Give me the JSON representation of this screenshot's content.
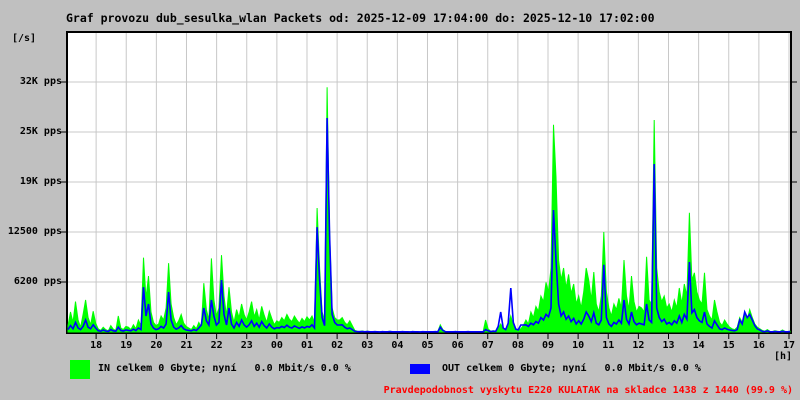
{
  "title": "Graf provozu dub_sesulka_wlan Packets od: 2025-12-09 17:04:00 do: 2025-12-10 17:02:00",
  "y_unit": "[/s]",
  "legend": {
    "in_label": "IN celkem 0 Gbyte; nyní   0.0 Mbit/s 0.0 %",
    "out_label": "OUT celkem 0 Gbyte; nyní   0.0 Mbit/s 0.0 %",
    "in_color": "#00ff00",
    "out_color": "#0000ff"
  },
  "footer": {
    "text": "Pravdepodobnost vyskytu E220 KULATAK na skladce 1438 z 1440 (99.9 %)",
    "color": "#ff0000"
  },
  "colors": {
    "background": "#c0c0c0",
    "plot_background": "#ffffff",
    "grid": "#c8c8c8",
    "border": "#000000"
  },
  "chart_data": {
    "type": "area",
    "title": "Graf provozu dub_sesulka_wlan Packets",
    "time_start": "2025-12-09 17:04:00",
    "time_end": "2025-12-10 17:02:00",
    "x_unit": "[h]",
    "x_labels": [
      "18",
      "19",
      "20",
      "21",
      "22",
      "23",
      "00",
      "01",
      "02",
      "03",
      "04",
      "05",
      "06",
      "07",
      "08",
      "09",
      "10",
      "11",
      "12",
      "13",
      "14",
      "15",
      "16",
      "17"
    ],
    "y_ticks": [
      {
        "label": "6200 pps",
        "value": 6250
      },
      {
        "label": "12500 pps",
        "value": 12500
      },
      {
        "label": "19K pps",
        "value": 18750
      },
      {
        "label": "25K pps",
        "value": 25000
      },
      {
        "label": "32K pps",
        "value": 31250
      }
    ],
    "ylim": [
      0,
      37375
    ],
    "grid": true,
    "legend_position": "bottom",
    "sample_interval_minutes": 5,
    "series": [
      {
        "name": "IN",
        "style": "area",
        "color": "#00ff00",
        "values": [
          800,
          2500,
          1200,
          3800,
          1500,
          600,
          2200,
          4000,
          1800,
          900,
          2600,
          1100,
          400,
          200,
          600,
          300,
          150,
          800,
          350,
          200,
          2000,
          500,
          300,
          700,
          600,
          300,
          900,
          400,
          1500,
          800,
          9300,
          4200,
          7000,
          2500,
          1200,
          800,
          1000,
          2000,
          1500,
          3000,
          8600,
          3500,
          1800,
          900,
          1400,
          2200,
          1100,
          700,
          500,
          300,
          800,
          400,
          1200,
          600,
          6100,
          2800,
          1500,
          9200,
          4000,
          2000,
          3000,
          9600,
          4500,
          2000,
          5600,
          2500,
          1200,
          2800,
          1800,
          3500,
          2200,
          1500,
          2500,
          3800,
          1900,
          2800,
          1500,
          3200,
          2100,
          1200,
          2600,
          1700,
          900,
          1400,
          1200,
          1800,
          1400,
          2200,
          1600,
          1300,
          2000,
          1500,
          1100,
          1700,
          1300,
          1900,
          1500,
          2000,
          1200,
          15500,
          8000,
          2500,
          1500,
          30600,
          12500,
          3000,
          1800,
          1500,
          1500,
          1800,
          1200,
          900,
          1400,
          800,
          200,
          100,
          80,
          120,
          60,
          100,
          60,
          40,
          80,
          50,
          30,
          70,
          40,
          60,
          90,
          50,
          40,
          60,
          50,
          70,
          40,
          60,
          30,
          80,
          45,
          55,
          35,
          65,
          50,
          40,
          60,
          40,
          70,
          50,
          900,
          300,
          80,
          50,
          60,
          40,
          70,
          50,
          50,
          60,
          40,
          70,
          50,
          60,
          40,
          50,
          60,
          40,
          1500,
          400,
          100,
          150,
          120,
          500,
          1000,
          400,
          250,
          800,
          2000,
          800,
          300,
          250,
          400,
          800,
          1500,
          1000,
          2500,
          1800,
          3200,
          2600,
          4500,
          3800,
          6200,
          5000,
          8000,
          25900,
          19400,
          9000,
          6500,
          8000,
          5500,
          7200,
          4800,
          6000,
          3500,
          4500,
          3000,
          5000,
          8000,
          6500,
          4000,
          7500,
          3500,
          2500,
          4500,
          12500,
          5000,
          3000,
          2000,
          3500,
          2800,
          4200,
          3000,
          9000,
          4500,
          2800,
          7000,
          3800,
          2500,
          3200,
          3000,
          2500,
          9400,
          4000,
          3500,
          26500,
          8000,
          5000,
          3800,
          4500,
          3000,
          3500,
          2500,
          4000,
          3000,
          5500,
          3500,
          6000,
          4500,
          14900,
          6500,
          7400,
          5000,
          4000,
          3500,
          7400,
          2800,
          2000,
          1500,
          4000,
          2500,
          1200,
          800,
          1500,
          1000,
          600,
          400,
          300,
          600,
          1800,
          1200,
          2200,
          1500,
          2800,
          1800,
          1000,
          600,
          400,
          200,
          100,
          300,
          80,
          60,
          150,
          90,
          50,
          250,
          70,
          40,
          100
        ]
      },
      {
        "name": "OUT",
        "style": "line",
        "color": "#0000ff",
        "values": [
          300,
          800,
          400,
          1200,
          500,
          300,
          700,
          1500,
          600,
          400,
          900,
          500,
          150,
          100,
          250,
          120,
          80,
          300,
          150,
          100,
          600,
          200,
          120,
          250,
          200,
          150,
          350,
          180,
          500,
          300,
          5600,
          2000,
          3500,
          1000,
          500,
          300,
          400,
          700,
          500,
          1000,
          5000,
          1500,
          600,
          350,
          500,
          800,
          400,
          250,
          200,
          150,
          300,
          180,
          500,
          876,
          3000,
          1400,
          876,
          4000,
          2000,
          876,
          1200,
          6500,
          2200,
          876,
          3000,
          1000,
          500,
          1200,
          700,
          1500,
          900,
          600,
          900,
          1400,
          700,
          1100,
          600,
          1300,
          800,
          500,
          1000,
          600,
          400,
          550,
          500,
          700,
          550,
          850,
          600,
          500,
          750,
          600,
          450,
          650,
          500,
          700,
          600,
          900,
          500,
          13100,
          6500,
          1800,
          800,
          26750,
          12000,
          2200,
          1200,
          876,
          876,
          900,
          600,
          400,
          500,
          300,
          80,
          50,
          40,
          60,
          30,
          50,
          30,
          20,
          40,
          25,
          15,
          35,
          20,
          30,
          45,
          25,
          20,
          30,
          25,
          35,
          20,
          30,
          15,
          40,
          22,
          28,
          18,
          32,
          25,
          20,
          30,
          20,
          35,
          25,
          600,
          200,
          40,
          25,
          30,
          20,
          35,
          25,
          25,
          30,
          20,
          35,
          25,
          30,
          20,
          25,
          30,
          20,
          300,
          150,
          60,
          100,
          80,
          700,
          2500,
          500,
          300,
          1100,
          5500,
          1200,
          350,
          280,
          876,
          876,
          900,
          700,
          1100,
          900,
          1300,
          1100,
          1800,
          1500,
          2200,
          1900,
          3000,
          15250,
          9000,
          3500,
          2000,
          2500,
          1600,
          2000,
          1300,
          1700,
          1000,
          1400,
          1000,
          1600,
          2500,
          2000,
          1300,
          2400,
          1100,
          900,
          1500,
          8400,
          1800,
          1000,
          700,
          1200,
          1000,
          1500,
          1100,
          4000,
          1600,
          1000,
          2500,
          1300,
          900,
          1100,
          1000,
          900,
          3500,
          1500,
          1200,
          21000,
          3000,
          1800,
          1300,
          1600,
          1000,
          1200,
          900,
          1400,
          1100,
          2000,
          1200,
          2200,
          1600,
          8750,
          2400,
          2800,
          1800,
          1400,
          1200,
          2500,
          1000,
          700,
          500,
          1400,
          900,
          400,
          300,
          500,
          350,
          250,
          200,
          150,
          300,
          1500,
          1000,
          2500,
          1800,
          2200,
          1500,
          800,
          400,
          250,
          80,
          50,
          120,
          40,
          30,
          60,
          40,
          25,
          90,
          35,
          20,
          50
        ]
      }
    ]
  }
}
